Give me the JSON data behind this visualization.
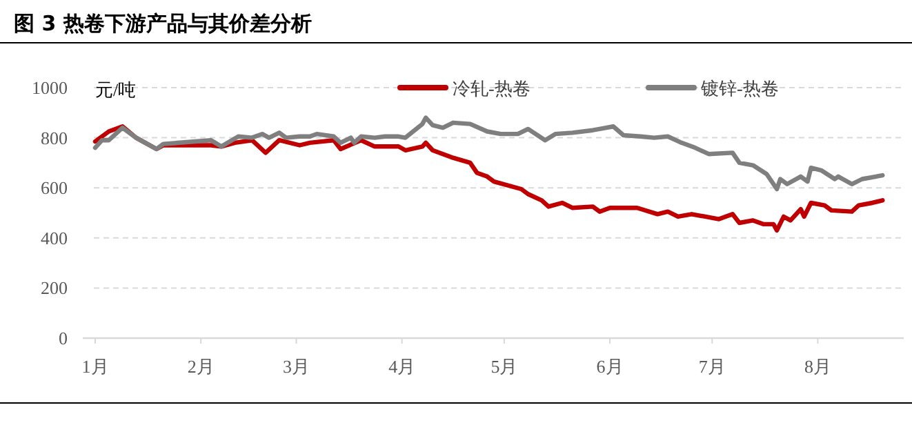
{
  "chart_data": {
    "type": "line",
    "title": "图 3 热卷下游产品与其价差分析",
    "ylabel": "元/吨",
    "xlim": [
      "--01-01",
      "--08-25"
    ],
    "xticks": [
      {
        "value": "--01-01",
        "label": "1月"
      },
      {
        "value": "--02-01",
        "label": "2月"
      },
      {
        "value": "--03-01",
        "label": "3月"
      },
      {
        "value": "--04-01",
        "label": "4月"
      },
      {
        "value": "--05-01",
        "label": "5月"
      },
      {
        "value": "--06-01",
        "label": "6月"
      },
      {
        "value": "--07-01",
        "label": "7月"
      },
      {
        "value": "--08-01",
        "label": "8月"
      }
    ],
    "ylim": [
      0,
      1000
    ],
    "yticks": [
      0,
      200,
      400,
      600,
      800,
      1000
    ],
    "grid": "y",
    "legend": "top",
    "line_style": "solid",
    "marker": "none",
    "series": [
      {
        "name": "冷轧-热卷",
        "color": "#c00000",
        "x": [
          "--01-01",
          "--01-05",
          "--01-09",
          "--01-13",
          "--01-19",
          "--01-21",
          "--02-04",
          "--02-07",
          "--02-11",
          "--02-16",
          "--02-20",
          "--02-24",
          "--03-02",
          "--03-05",
          "--03-12",
          "--03-14",
          "--03-20",
          "--03-24",
          "--03-31",
          "--04-02",
          "--04-07",
          "--04-08",
          "--04-10",
          "--04-16",
          "--04-21",
          "--04-23",
          "--04-26",
          "--04-28",
          "--05-06",
          "--05-08",
          "--05-12",
          "--05-14",
          "--05-18",
          "--05-21",
          "--05-27",
          "--05-29",
          "--06-01",
          "--06-09",
          "--06-15",
          "--06-18",
          "--06-21",
          "--06-25",
          "--06-29",
          "--07-03",
          "--07-07",
          "--07-09",
          "--07-13",
          "--07-16",
          "--07-19",
          "--07-20",
          "--07-22",
          "--07-24",
          "--07-27",
          "--07-28",
          "--07-30",
          "--08-03",
          "--08-05",
          "--08-11",
          "--08-13",
          "--08-17",
          "--08-20"
        ],
        "values": [
          785,
          825,
          845,
          800,
          755,
          770,
          770,
          765,
          780,
          790,
          740,
          790,
          770,
          780,
          790,
          755,
          790,
          765,
          765,
          750,
          765,
          780,
          750,
          720,
          700,
          660,
          645,
          625,
          595,
          575,
          550,
          525,
          540,
          520,
          525,
          505,
          520,
          520,
          495,
          505,
          485,
          495,
          485,
          475,
          495,
          460,
          470,
          455,
          455,
          430,
          485,
          470,
          515,
          485,
          540,
          530,
          510,
          505,
          530,
          540,
          550
        ]
      },
      {
        "name": "镀锌-热卷",
        "color": "#7f7f7f",
        "x": [
          "--01-01",
          "--01-03",
          "--01-05",
          "--01-07",
          "--01-09",
          "--01-13",
          "--01-19",
          "--01-21",
          "--02-04",
          "--02-07",
          "--02-12",
          "--02-16",
          "--02-19",
          "--02-21",
          "--02-24",
          "--02-26",
          "--03-02",
          "--03-05",
          "--03-07",
          "--03-12",
          "--03-14",
          "--03-17",
          "--03-18",
          "--03-20",
          "--03-24",
          "--03-27",
          "--03-31",
          "--04-02",
          "--04-07",
          "--04-08",
          "--04-10",
          "--04-13",
          "--04-16",
          "--04-21",
          "--04-26",
          "--04-30",
          "--05-05",
          "--05-08",
          "--05-13",
          "--05-16",
          "--05-21",
          "--05-27",
          "--05-29",
          "--06-02",
          "--06-05",
          "--06-10",
          "--06-14",
          "--06-18",
          "--06-22",
          "--06-26",
          "--06-30",
          "--07-07",
          "--07-09",
          "--07-13",
          "--07-17",
          "--07-20",
          "--07-21",
          "--07-23",
          "--07-27",
          "--07-29",
          "--07-30",
          "--08-02",
          "--08-06",
          "--08-07",
          "--08-11",
          "--08-14",
          "--08-20"
        ],
        "values": [
          760,
          790,
          790,
          815,
          840,
          800,
          755,
          775,
          790,
          765,
          805,
          800,
          815,
          800,
          820,
          800,
          805,
          805,
          815,
          805,
          780,
          800,
          780,
          805,
          800,
          805,
          805,
          800,
          855,
          880,
          850,
          840,
          860,
          855,
          825,
          815,
          815,
          835,
          790,
          815,
          820,
          830,
          835,
          845,
          810,
          805,
          800,
          805,
          780,
          760,
          735,
          740,
          700,
          690,
          655,
          595,
          635,
          615,
          645,
          625,
          680,
          670,
          635,
          645,
          615,
          635,
          650
        ]
      }
    ]
  }
}
